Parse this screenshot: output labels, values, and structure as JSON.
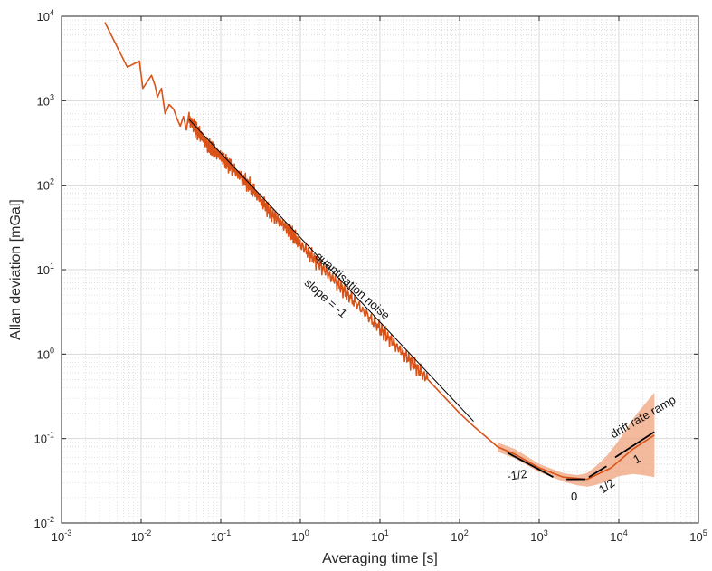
{
  "chart_data": {
    "type": "line",
    "title": "",
    "xlabel": "Averaging time [s]",
    "ylabel": "Allan deviation [mGal]",
    "x_scale": "log",
    "y_scale": "log",
    "xlim": [
      0.001,
      100000
    ],
    "ylim": [
      0.01,
      10000
    ],
    "grid": true,
    "minor_grid": true,
    "x_ticks": [
      {
        "value": 0.001,
        "base": "10",
        "exp": "-3"
      },
      {
        "value": 0.01,
        "base": "10",
        "exp": "-2"
      },
      {
        "value": 0.1,
        "base": "10",
        "exp": "-1"
      },
      {
        "value": 1,
        "base": "10",
        "exp": "0"
      },
      {
        "value": 10,
        "base": "10",
        "exp": "1"
      },
      {
        "value": 100,
        "base": "10",
        "exp": "2"
      },
      {
        "value": 1000,
        "base": "10",
        "exp": "3"
      },
      {
        "value": 10000,
        "base": "10",
        "exp": "4"
      },
      {
        "value": 100000,
        "base": "10",
        "exp": "5"
      }
    ],
    "y_ticks": [
      {
        "value": 0.01,
        "base": "10",
        "exp": "-2"
      },
      {
        "value": 0.1,
        "base": "10",
        "exp": "-1"
      },
      {
        "value": 1,
        "base": "10",
        "exp": "0"
      },
      {
        "value": 10,
        "base": "10",
        "exp": "1"
      },
      {
        "value": 100,
        "base": "10",
        "exp": "2"
      },
      {
        "value": 1000,
        "base": "10",
        "exp": "3"
      },
      {
        "value": 10000,
        "base": "10",
        "exp": "4"
      }
    ],
    "colors": {
      "measured": "#d95319",
      "band": "#f0a37d",
      "fit": "#000000",
      "grid": "#d9d9d9",
      "axis": "#262626"
    },
    "series": [
      {
        "role": "measured",
        "x": [
          0.0035,
          0.0067,
          0.0095,
          0.0105,
          0.0135,
          0.015,
          0.016,
          0.018,
          0.02,
          0.0225,
          0.0255,
          0.0285,
          0.031,
          0.034,
          0.037,
          0.04,
          0.05,
          0.07,
          0.1,
          0.15,
          0.25,
          0.4,
          0.7,
          1.0,
          2.0,
          4.0,
          10.0,
          20.0,
          40.0,
          100.0,
          150.0,
          300.0,
          500.0,
          1000.0,
          2000.0,
          4000.0,
          8000.0,
          15000,
          28000
        ],
        "y": [
          8500,
          2500,
          2950,
          1400,
          2000,
          1500,
          1100,
          1400,
          700,
          900,
          800,
          600,
          500,
          650,
          450,
          600,
          450,
          290,
          220,
          150,
          90,
          50,
          30,
          20,
          10,
          5,
          2,
          1,
          0.5,
          0.2,
          0.14,
          0.08,
          0.065,
          0.045,
          0.035,
          0.033,
          0.045,
          0.075,
          0.11
        ]
      },
      {
        "role": "confidence-band",
        "x": [
          300,
          500,
          1000,
          2000,
          3000,
          4000,
          5000,
          7000,
          10000,
          15000,
          20000,
          28000
        ],
        "upper": [
          0.09,
          0.075,
          0.05,
          0.039,
          0.037,
          0.039,
          0.046,
          0.062,
          0.095,
          0.17,
          0.24,
          0.35
        ],
        "lower": [
          0.07,
          0.058,
          0.04,
          0.031,
          0.028,
          0.027,
          0.028,
          0.031,
          0.036,
          0.038,
          0.037,
          0.035
        ]
      },
      {
        "role": "fit",
        "segments": [
          {
            "x": [
              0.04,
              150
            ],
            "y": [
              600,
              0.16
            ]
          },
          {
            "x": [
              400,
              1500
            ],
            "y": [
              0.068,
              0.035
            ]
          },
          {
            "x": [
              2200,
              3800
            ],
            "y": [
              0.033,
              0.033
            ]
          },
          {
            "x": [
              4200,
              7000
            ],
            "y": [
              0.035,
              0.047
            ]
          },
          {
            "x": [
              9000,
              28000
            ],
            "y": [
              0.06,
              0.12
            ]
          }
        ]
      }
    ],
    "annotations": [
      {
        "text": "quantisation noise",
        "x": 1.5,
        "y": 14,
        "angle": 41.5
      },
      {
        "text": "slope = -1",
        "x": 1.1,
        "y": 6.8,
        "angle": 41.5
      },
      {
        "text": "-1/2",
        "x": 400,
        "y": 0.032,
        "angle": -8
      },
      {
        "text": "0",
        "x": 2500,
        "y": 0.0185,
        "angle": 0
      },
      {
        "text": "1/2",
        "x": 6200,
        "y": 0.022,
        "angle": -35
      },
      {
        "text": "1",
        "x": 16500,
        "y": 0.05,
        "angle": -30
      },
      {
        "text": "drift rate ramp",
        "x": 8500,
        "y": 0.1,
        "angle": -30
      }
    ]
  }
}
